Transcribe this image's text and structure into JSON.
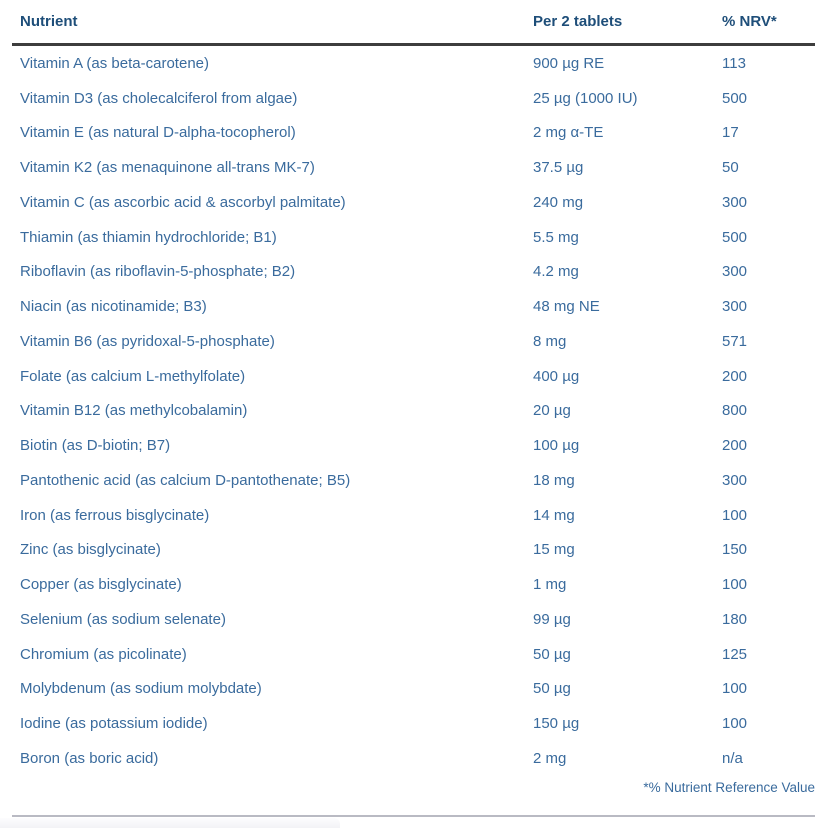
{
  "colors": {
    "header_text": "#1e4e79",
    "body_text": "#3a6b9d",
    "header_rule": "#3d3d3d",
    "bottom_rule": "#b9bac3"
  },
  "table": {
    "columns": [
      "Nutrient",
      "Per 2 tablets",
      "% NRV*"
    ],
    "rows": [
      {
        "nutrient": "Vitamin A (as beta-carotene)",
        "amount": "900 µg RE",
        "nrv": "113"
      },
      {
        "nutrient": "Vitamin D3 (as cholecalciferol from algae)",
        "amount": "25 µg (1000 IU)",
        "nrv": "500"
      },
      {
        "nutrient": "Vitamin E (as natural D-alpha-tocopherol)",
        "amount": "2 mg α-TE",
        "nrv": "17"
      },
      {
        "nutrient": "Vitamin K2 (as menaquinone all-trans MK-7)",
        "amount": "37.5 µg",
        "nrv": "50"
      },
      {
        "nutrient": "Vitamin C (as ascorbic acid & ascorbyl palmitate)",
        "amount": "240 mg",
        "nrv": "300"
      },
      {
        "nutrient": "Thiamin (as thiamin hydrochloride; B1)",
        "amount": "5.5 mg",
        "nrv": "500"
      },
      {
        "nutrient": "Riboflavin (as riboflavin-5-phosphate; B2)",
        "amount": "4.2 mg",
        "nrv": "300"
      },
      {
        "nutrient": "Niacin (as nicotinamide; B3)",
        "amount": "48 mg NE",
        "nrv": "300"
      },
      {
        "nutrient": "Vitamin B6 (as pyridoxal-5-phosphate)",
        "amount": "8 mg",
        "nrv": "571"
      },
      {
        "nutrient": "Folate (as calcium L-methylfolate)",
        "amount": "400 µg",
        "nrv": "200"
      },
      {
        "nutrient": "Vitamin B12 (as methylcobalamin)",
        "amount": "20 µg",
        "nrv": "800"
      },
      {
        "nutrient": "Biotin (as D-biotin; B7)",
        "amount": "100 µg",
        "nrv": "200"
      },
      {
        "nutrient": "Pantothenic acid (as calcium D-pantothenate; B5)",
        "amount": "18 mg",
        "nrv": "300"
      },
      {
        "nutrient": "Iron (as ferrous bisglycinate)",
        "amount": "14 mg",
        "nrv": "100"
      },
      {
        "nutrient": "Zinc (as bisglycinate)",
        "amount": "15 mg",
        "nrv": "150"
      },
      {
        "nutrient": "Copper (as bisglycinate)",
        "amount": "1 mg",
        "nrv": "100"
      },
      {
        "nutrient": "Selenium (as sodium selenate)",
        "amount": "99 µg",
        "nrv": "180"
      },
      {
        "nutrient": "Chromium (as picolinate)",
        "amount": "50 µg",
        "nrv": "125"
      },
      {
        "nutrient": "Molybdenum (as sodium molybdate)",
        "amount": "50 µg",
        "nrv": "100"
      },
      {
        "nutrient": "Iodine (as potassium iodide)",
        "amount": "150 µg",
        "nrv": "100"
      },
      {
        "nutrient": "Boron (as boric acid)",
        "amount": "2 mg",
        "nrv": "n/a"
      }
    ],
    "footnote": "*% Nutrient Reference Value"
  }
}
